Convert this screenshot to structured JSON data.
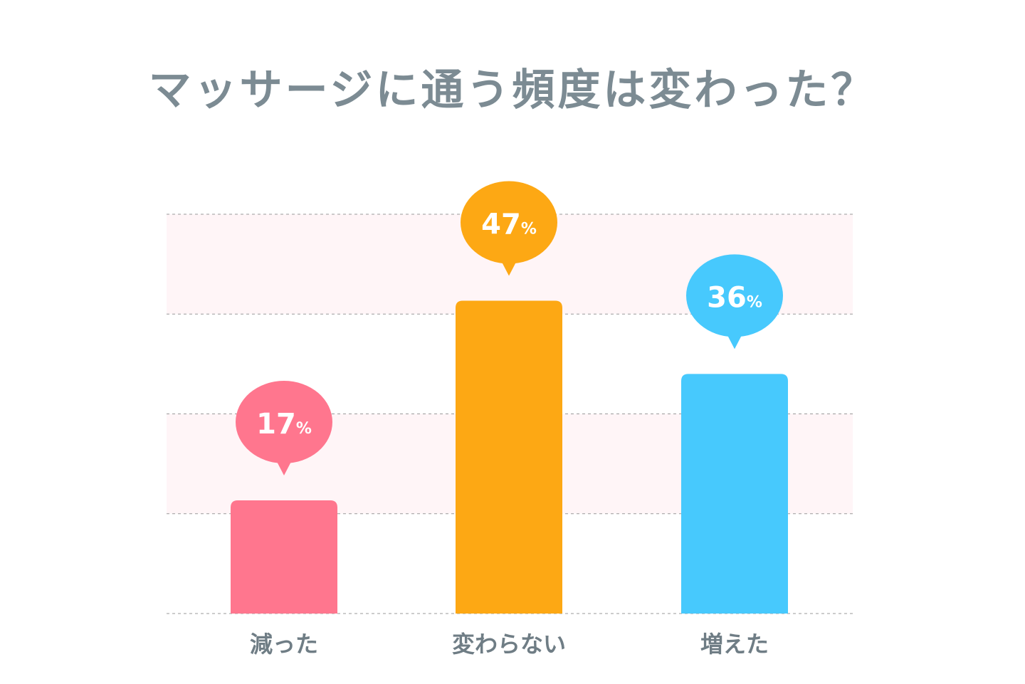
{
  "chart_data": {
    "type": "bar",
    "title": "マッサージに通う頻度は変わった？",
    "categories": [
      "減った",
      "変わらない",
      "増えた"
    ],
    "values": [
      17,
      47,
      36
    ],
    "value_labels": [
      "17",
      "47",
      "36"
    ],
    "unit": "%",
    "colors": [
      "#ff768e",
      "#fda814",
      "#47c9fd"
    ],
    "ylim": [
      0,
      60
    ],
    "gridlines": [
      0,
      15,
      30,
      45,
      60
    ],
    "grid": true,
    "gridline_style": "dashed",
    "band_color": "#fff5f7"
  }
}
